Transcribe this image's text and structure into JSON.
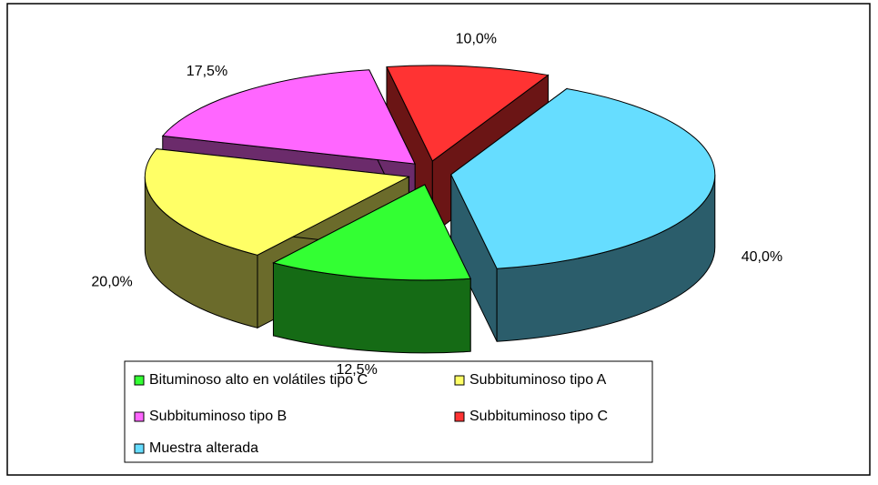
{
  "chart_data": {
    "type": "pie3d",
    "categories": [
      "Bituminoso alto en volátiles tipo C",
      "Subbituminoso tipo A",
      "Subbituminoso tipo B",
      "Subbituminoso tipo C",
      "Muestra alterada"
    ],
    "values": [
      12.5,
      20,
      17.5,
      10,
      40
    ],
    "value_labels": [
      "12,5%",
      "20,0%",
      "17,5%",
      "10,0%",
      "40,0%"
    ],
    "colors": [
      "#33ff33",
      "#ffff66",
      "#ff66ff",
      "#ff3333",
      "#66ddff"
    ],
    "legend": "bottom"
  }
}
